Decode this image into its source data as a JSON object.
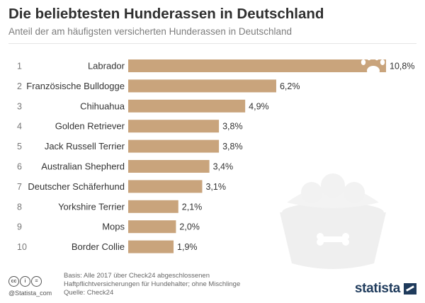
{
  "header": {
    "title": "Die beliebtesten Hunderassen in Deutschland",
    "subtitle": "Anteil der am häufigsten versicherten Hunderassen in Deutschland"
  },
  "chart_data": {
    "type": "bar",
    "orientation": "horizontal",
    "ranks": [
      "1",
      "2",
      "3",
      "4",
      "5",
      "6",
      "7",
      "8",
      "9",
      "10"
    ],
    "categories": [
      "Labrador",
      "Französische Bulldogge",
      "Chihuahua",
      "Golden Retriever",
      "Jack Russell Terrier",
      "Australian Shepherd",
      "Deutscher Schäferhund",
      "Yorkshire Terrier",
      "Mops",
      "Border Collie"
    ],
    "values": [
      10.8,
      6.2,
      4.9,
      3.8,
      3.8,
      3.4,
      3.1,
      2.1,
      2.0,
      1.9
    ],
    "value_labels": [
      "10,8%",
      "6,2%",
      "4,9%",
      "3,8%",
      "3,8%",
      "3,4%",
      "3,1%",
      "2,1%",
      "2,0%",
      "1,9%"
    ],
    "title": "Die beliebtesten Hunderassen in Deutschland",
    "subtitle": "Anteil der am häufigsten versicherten Hunderassen in Deutschland",
    "xlim": [
      0,
      10.8
    ],
    "grid": false,
    "bar_color": "#c9a47c"
  },
  "footer": {
    "cc_icons": [
      "cc-icon",
      "by-icon",
      "equals-icon"
    ],
    "handle": "@Statista_com",
    "note_lines": [
      "Basis: Alle 2017 über Check24 abgeschlossenen",
      "Haftpflichtversicherungen für Hundehalter; ohne Mischlinge",
      "Quelle: Check24"
    ],
    "brand": "statista"
  },
  "colors": {
    "bar": "#c9a47c",
    "bowl": "#efefef",
    "paw": "#ffffff",
    "brand": "#1f3b5c"
  }
}
